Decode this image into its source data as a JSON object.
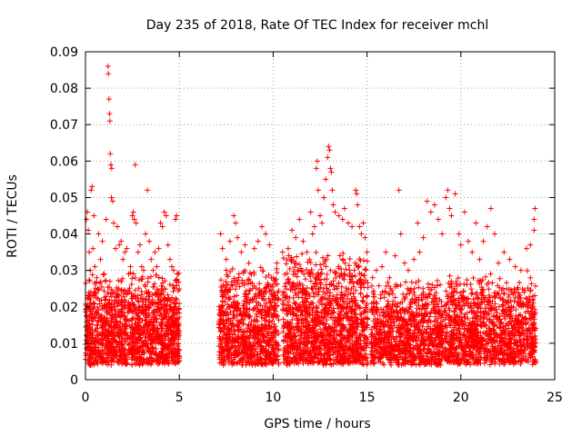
{
  "chart_data": {
    "type": "scatter",
    "title": "Day 235 of 2018, Rate Of TEC Index for receiver mchl",
    "xlabel": "GPS time / hours",
    "ylabel": "ROTI / TECUs",
    "xlim": [
      0,
      25
    ],
    "ylim": [
      0,
      0.09
    ],
    "xticks": [
      0,
      5,
      10,
      15,
      20,
      25
    ],
    "xtick_labels": [
      "0",
      "5",
      "10",
      "15",
      "20",
      "25"
    ],
    "yticks": [
      0,
      0.01,
      0.02,
      0.03,
      0.04,
      0.05,
      0.06,
      0.07,
      0.08,
      0.09
    ],
    "ytick_labels": [
      "0",
      "0.01",
      "0.02",
      "0.03",
      "0.04",
      "0.05",
      "0.06",
      "0.07",
      "0.08",
      "0.09"
    ],
    "grid": true,
    "marker": "+",
    "marker_color": "#ff0000",
    "series": [
      {
        "name": "ROTI",
        "points": [
          [
            0.05,
            0.044
          ],
          [
            0.1,
            0.046
          ],
          [
            0.15,
            0.041
          ],
          [
            0.2,
            0.035
          ],
          [
            0.25,
            0.03
          ],
          [
            0.3,
            0.052
          ],
          [
            0.35,
            0.053
          ],
          [
            0.4,
            0.036
          ],
          [
            0.45,
            0.045
          ],
          [
            0.5,
            0.031
          ],
          [
            0.6,
            0.028
          ],
          [
            0.7,
            0.04
          ],
          [
            0.8,
            0.033
          ],
          [
            0.9,
            0.038
          ],
          [
            1.0,
            0.029
          ],
          [
            1.1,
            0.044
          ],
          [
            1.2,
            0.086
          ],
          [
            1.22,
            0.084
          ],
          [
            1.25,
            0.077
          ],
          [
            1.28,
            0.073
          ],
          [
            1.3,
            0.071
          ],
          [
            1.32,
            0.062
          ],
          [
            1.35,
            0.059
          ],
          [
            1.4,
            0.058
          ],
          [
            1.38,
            0.05
          ],
          [
            1.45,
            0.049
          ],
          [
            1.5,
            0.043
          ],
          [
            1.6,
            0.036
          ],
          [
            1.7,
            0.042
          ],
          [
            1.8,
            0.037
          ],
          [
            1.9,
            0.038
          ],
          [
            2.0,
            0.033
          ],
          [
            2.1,
            0.035
          ],
          [
            2.2,
            0.036
          ],
          [
            2.3,
            0.029
          ],
          [
            2.4,
            0.031
          ],
          [
            2.5,
            0.045
          ],
          [
            2.55,
            0.046
          ],
          [
            2.6,
            0.044
          ],
          [
            2.7,
            0.043
          ],
          [
            2.65,
            0.059
          ],
          [
            2.8,
            0.035
          ],
          [
            2.9,
            0.037
          ],
          [
            3.0,
            0.031
          ],
          [
            3.1,
            0.03
          ],
          [
            3.2,
            0.04
          ],
          [
            3.3,
            0.052
          ],
          [
            3.4,
            0.038
          ],
          [
            3.5,
            0.033
          ],
          [
            3.6,
            0.03
          ],
          [
            3.7,
            0.035
          ],
          [
            3.8,
            0.031
          ],
          [
            3.9,
            0.036
          ],
          [
            4.0,
            0.043
          ],
          [
            4.1,
            0.042
          ],
          [
            4.2,
            0.046
          ],
          [
            4.3,
            0.045
          ],
          [
            4.4,
            0.037
          ],
          [
            4.5,
            0.033
          ],
          [
            4.6,
            0.031
          ],
          [
            4.7,
            0.03
          ],
          [
            4.8,
            0.044
          ],
          [
            4.85,
            0.045
          ],
          [
            4.9,
            0.029
          ],
          [
            7.2,
            0.04
          ],
          [
            7.3,
            0.036
          ],
          [
            7.5,
            0.033
          ],
          [
            7.7,
            0.038
          ],
          [
            7.9,
            0.045
          ],
          [
            8.0,
            0.043
          ],
          [
            8.1,
            0.039
          ],
          [
            8.3,
            0.035
          ],
          [
            8.5,
            0.037
          ],
          [
            8.7,
            0.032
          ],
          [
            9.0,
            0.036
          ],
          [
            9.2,
            0.038
          ],
          [
            9.4,
            0.042
          ],
          [
            9.6,
            0.04
          ],
          [
            9.8,
            0.037
          ],
          [
            10.0,
            0.028
          ],
          [
            10.2,
            0.032
          ],
          [
            10.5,
            0.035
          ],
          [
            10.8,
            0.036
          ],
          [
            11.0,
            0.041
          ],
          [
            11.2,
            0.039
          ],
          [
            11.4,
            0.044
          ],
          [
            11.6,
            0.038
          ],
          [
            11.8,
            0.035
          ],
          [
            12.0,
            0.046
          ],
          [
            12.1,
            0.04
          ],
          [
            12.2,
            0.042
          ],
          [
            12.3,
            0.058
          ],
          [
            12.35,
            0.06
          ],
          [
            12.4,
            0.052
          ],
          [
            12.5,
            0.045
          ],
          [
            12.6,
            0.043
          ],
          [
            12.7,
            0.05
          ],
          [
            12.8,
            0.055
          ],
          [
            12.9,
            0.061
          ],
          [
            12.95,
            0.064
          ],
          [
            13.0,
            0.063
          ],
          [
            13.05,
            0.058
          ],
          [
            13.1,
            0.057
          ],
          [
            13.15,
            0.052
          ],
          [
            13.2,
            0.048
          ],
          [
            13.3,
            0.046
          ],
          [
            13.5,
            0.045
          ],
          [
            13.7,
            0.044
          ],
          [
            13.8,
            0.047
          ],
          [
            14.0,
            0.043
          ],
          [
            14.2,
            0.042
          ],
          [
            14.4,
            0.052
          ],
          [
            14.45,
            0.051
          ],
          [
            14.5,
            0.048
          ],
          [
            14.6,
            0.042
          ],
          [
            14.7,
            0.04
          ],
          [
            14.8,
            0.043
          ],
          [
            14.9,
            0.039
          ],
          [
            15.0,
            0.035
          ],
          [
            15.3,
            0.028
          ],
          [
            15.5,
            0.03
          ],
          [
            15.8,
            0.031
          ],
          [
            16.0,
            0.035
          ],
          [
            16.2,
            0.028
          ],
          [
            16.5,
            0.034
          ],
          [
            16.7,
            0.052
          ],
          [
            16.8,
            0.04
          ],
          [
            17.0,
            0.032
          ],
          [
            17.2,
            0.03
          ],
          [
            17.5,
            0.033
          ],
          [
            17.7,
            0.043
          ],
          [
            17.8,
            0.035
          ],
          [
            18.0,
            0.039
          ],
          [
            18.2,
            0.049
          ],
          [
            18.4,
            0.046
          ],
          [
            18.6,
            0.048
          ],
          [
            18.8,
            0.044
          ],
          [
            19.0,
            0.04
          ],
          [
            19.2,
            0.05
          ],
          [
            19.3,
            0.052
          ],
          [
            19.4,
            0.047
          ],
          [
            19.5,
            0.045
          ],
          [
            19.7,
            0.051
          ],
          [
            19.9,
            0.04
          ],
          [
            20.0,
            0.037
          ],
          [
            20.2,
            0.046
          ],
          [
            20.4,
            0.038
          ],
          [
            20.6,
            0.035
          ],
          [
            20.8,
            0.043
          ],
          [
            21.0,
            0.033
          ],
          [
            21.2,
            0.038
          ],
          [
            21.4,
            0.042
          ],
          [
            21.6,
            0.047
          ],
          [
            21.8,
            0.04
          ],
          [
            22.0,
            0.032
          ],
          [
            22.3,
            0.035
          ],
          [
            22.6,
            0.033
          ],
          [
            22.9,
            0.031
          ],
          [
            23.2,
            0.03
          ],
          [
            23.5,
            0.036
          ],
          [
            23.7,
            0.037
          ],
          [
            23.9,
            0.044
          ],
          [
            23.95,
            0.047
          ],
          [
            23.9,
            0.041
          ]
        ]
      }
    ],
    "dense_bands": [
      {
        "x_start": 0.0,
        "x_end": 5.0,
        "y_low": 0.004,
        "y_high": 0.03,
        "density": 1400,
        "seed": 11
      },
      {
        "x_start": 7.1,
        "x_end": 10.3,
        "y_low": 0.004,
        "y_high": 0.032,
        "density": 850,
        "seed": 23
      },
      {
        "x_start": 10.5,
        "x_end": 15.05,
        "y_low": 0.004,
        "y_high": 0.036,
        "density": 1300,
        "seed": 37
      },
      {
        "x_start": 15.2,
        "x_end": 19.05,
        "y_low": 0.004,
        "y_high": 0.028,
        "density": 950,
        "seed": 41
      },
      {
        "x_start": 19.1,
        "x_end": 24.0,
        "y_low": 0.004,
        "y_high": 0.03,
        "density": 1200,
        "seed": 53
      }
    ]
  }
}
